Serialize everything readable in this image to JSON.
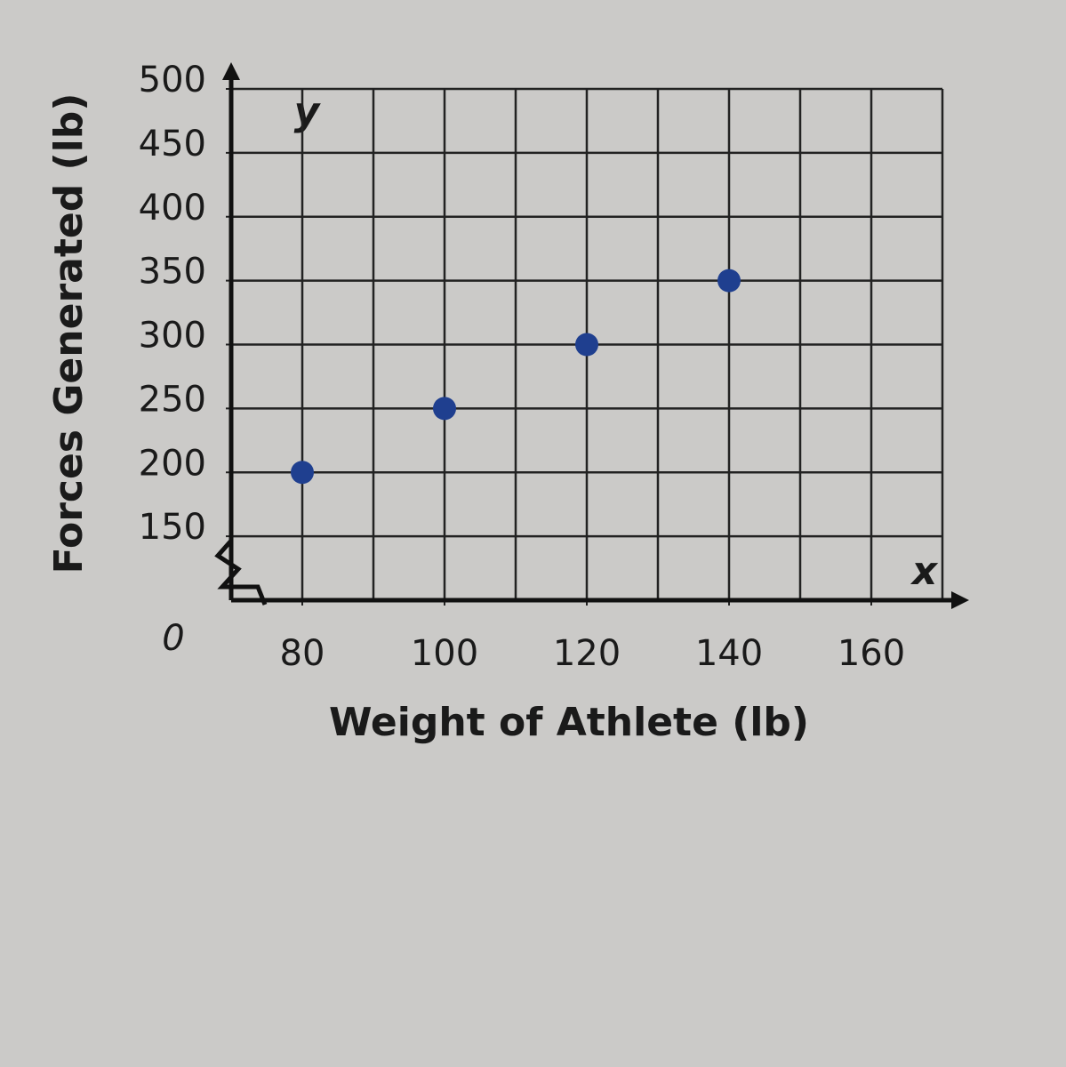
{
  "chart_data": {
    "type": "scatter",
    "xlabel": "Weight of Athlete (lb)",
    "ylabel": "Forces Generated (lb)",
    "x_axis_name": "x",
    "y_axis_name": "y",
    "origin_label": "0",
    "series": [
      {
        "color": "#1f3f8f",
        "x": [
          80,
          100,
          120,
          140
        ],
        "values": [
          200,
          250,
          300,
          350
        ]
      }
    ],
    "xlim": [
      70,
      170
    ],
    "ylim": [
      100,
      500
    ],
    "xticks": [
      80,
      100,
      120,
      140,
      160
    ],
    "yticks": [
      150,
      200,
      250,
      300,
      350,
      400,
      450,
      500
    ],
    "grid": true,
    "grid_step": {
      "x": 10,
      "y": 50
    }
  }
}
